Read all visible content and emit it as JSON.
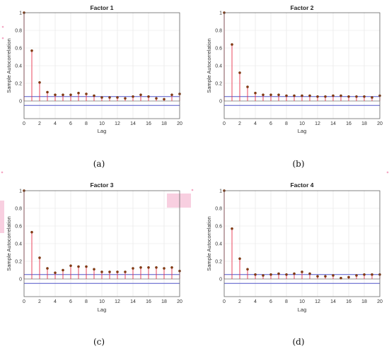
{
  "figure": {
    "colors": {
      "stem": "#e8324b",
      "marker": "#8b3a0f",
      "bound": "#5056c8",
      "grid": "#e3e3e3"
    }
  },
  "chart_data": [
    {
      "type": "stem",
      "title": "Factor 1",
      "xlabel": "Lag",
      "ylabel": "Sample Autocorrelation",
      "caption": "(a)",
      "xlim": [
        0,
        20
      ],
      "ylim": [
        -0.2,
        1
      ],
      "xticks": [
        0,
        2,
        4,
        6,
        8,
        10,
        12,
        14,
        16,
        18,
        20
      ],
      "yticks": [
        0,
        0.2,
        0.4,
        0.6,
        0.8,
        1
      ],
      "ytick_labels": [
        "0",
        "0.2",
        "0.4",
        "0.6",
        "0.8",
        "1"
      ],
      "grid": true,
      "confidence_bounds": [
        0.05,
        -0.05
      ],
      "x": [
        0,
        1,
        2,
        3,
        4,
        5,
        6,
        7,
        8,
        9,
        10,
        11,
        12,
        13,
        14,
        15,
        16,
        17,
        18,
        19,
        20
      ],
      "values": [
        1.0,
        0.57,
        0.21,
        0.1,
        0.07,
        0.07,
        0.07,
        0.09,
        0.08,
        0.06,
        0.04,
        0.04,
        0.04,
        0.03,
        0.05,
        0.07,
        0.05,
        0.03,
        0.02,
        0.07,
        0.08
      ]
    },
    {
      "type": "stem",
      "title": "Factor 2",
      "xlabel": "Lag",
      "ylabel": "Sample Autocorrelation",
      "caption": "(b)",
      "xlim": [
        0,
        20
      ],
      "ylim": [
        -0.2,
        1
      ],
      "xticks": [
        0,
        2,
        4,
        6,
        8,
        10,
        12,
        14,
        16,
        18,
        20
      ],
      "yticks": [
        0,
        0.2,
        0.4,
        0.6,
        0.8,
        1
      ],
      "ytick_labels": [
        "0",
        "0.2",
        "0.4",
        "0.6",
        "0.8",
        "1"
      ],
      "grid": true,
      "confidence_bounds": [
        0.05,
        -0.05
      ],
      "x": [
        0,
        1,
        2,
        3,
        4,
        5,
        6,
        7,
        8,
        9,
        10,
        11,
        12,
        13,
        14,
        15,
        16,
        17,
        18,
        19,
        20
      ],
      "values": [
        1.0,
        0.64,
        0.32,
        0.16,
        0.09,
        0.07,
        0.07,
        0.07,
        0.06,
        0.06,
        0.06,
        0.06,
        0.05,
        0.05,
        0.06,
        0.06,
        0.05,
        0.05,
        0.05,
        0.04,
        0.06
      ]
    },
    {
      "type": "stem",
      "title": "Factor 3",
      "xlabel": "Lag",
      "ylabel": "Sample Autocorrelation",
      "caption": "(c)",
      "xlim": [
        0,
        20
      ],
      "ylim": [
        -0.2,
        1
      ],
      "xticks": [
        0,
        2,
        4,
        6,
        8,
        10,
        12,
        14,
        16,
        18,
        20
      ],
      "yticks": [
        0,
        0.2,
        0.4,
        0.6,
        0.8,
        1
      ],
      "ytick_labels": [
        "0",
        "0.2",
        "0.4",
        "0.6",
        "0.8",
        "1"
      ],
      "grid": true,
      "confidence_bounds": [
        0.05,
        -0.05
      ],
      "x": [
        0,
        1,
        2,
        3,
        4,
        5,
        6,
        7,
        8,
        9,
        10,
        11,
        12,
        13,
        14,
        15,
        16,
        17,
        18,
        19,
        20
      ],
      "values": [
        1.0,
        0.53,
        0.24,
        0.12,
        0.07,
        0.1,
        0.15,
        0.14,
        0.14,
        0.11,
        0.08,
        0.08,
        0.08,
        0.08,
        0.12,
        0.13,
        0.13,
        0.13,
        0.12,
        0.13,
        0.09
      ]
    },
    {
      "type": "stem",
      "title": "Factor 4",
      "xlabel": "Lag",
      "ylabel": "Sample Autocorrelation",
      "caption": "(d)",
      "xlim": [
        0,
        20
      ],
      "ylim": [
        -0.2,
        1
      ],
      "xticks": [
        0,
        2,
        4,
        6,
        8,
        10,
        12,
        14,
        16,
        18,
        20
      ],
      "yticks": [
        0,
        0.2,
        0.4,
        0.6,
        0.8,
        1
      ],
      "ytick_labels": [
        "0",
        "0.2",
        "0.4",
        "0.6",
        "0.8",
        "1"
      ],
      "grid": true,
      "confidence_bounds": [
        0.05,
        -0.05
      ],
      "x": [
        0,
        1,
        2,
        3,
        4,
        5,
        6,
        7,
        8,
        9,
        10,
        11,
        12,
        13,
        14,
        15,
        16,
        17,
        18,
        19,
        20
      ],
      "values": [
        1.0,
        0.57,
        0.23,
        0.11,
        0.05,
        0.04,
        0.05,
        0.06,
        0.05,
        0.06,
        0.08,
        0.06,
        0.03,
        0.03,
        0.04,
        0.01,
        0.02,
        0.04,
        0.05,
        0.05,
        0.05
      ]
    }
  ]
}
